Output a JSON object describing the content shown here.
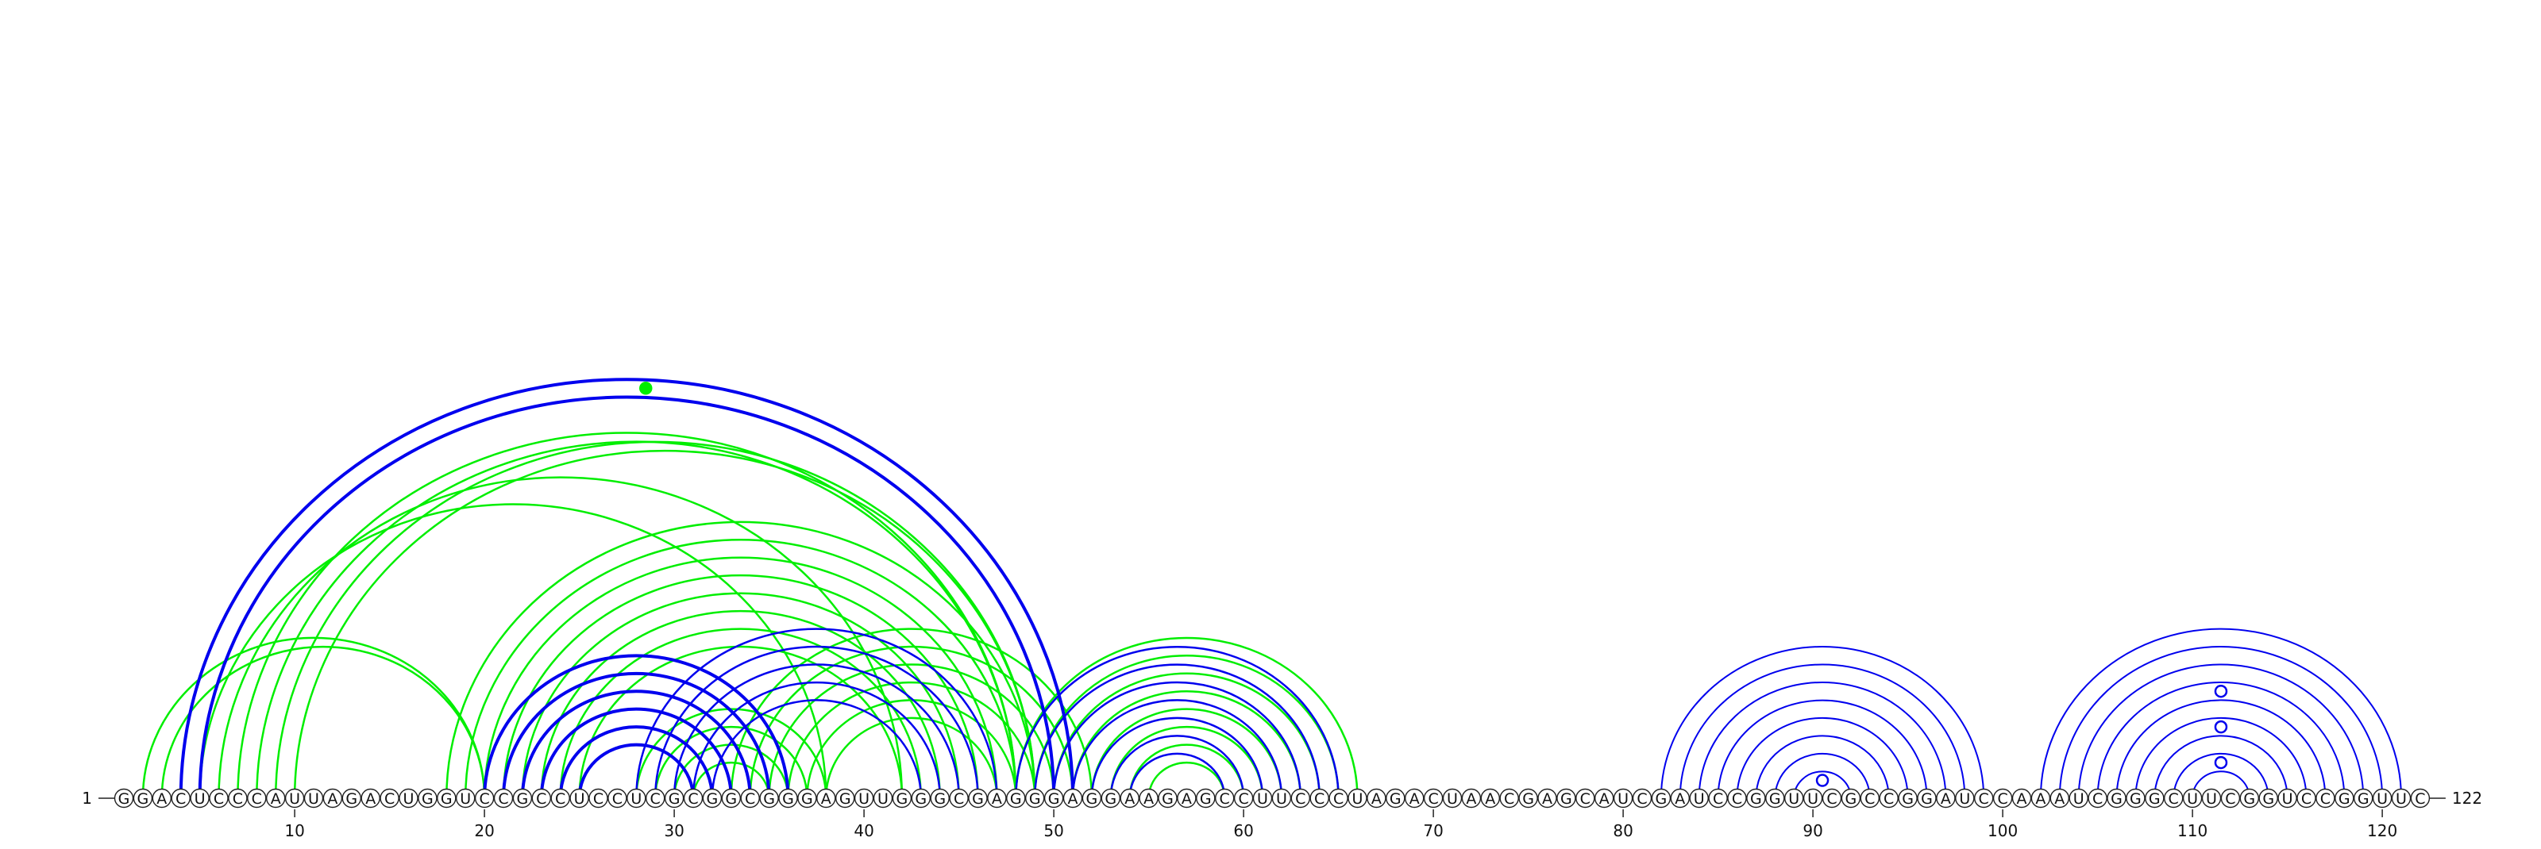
{
  "sequence": "GGACUCCCAUUAGACUGGUCCGCCUCCUCGCGGCGGGAGUUGGGCGAGGGAGGAAGAGCCUUCCCUAGACUAACGAGCAUCGAUCCGGUUCGCCGGAUCCAAAUCGGGCUUCGGUCCGGUUC",
  "length": 122,
  "start_label": "1",
  "end_label": "122",
  "ticks": [
    10,
    20,
    30,
    40,
    50,
    60,
    70,
    80,
    90,
    100,
    110,
    120
  ],
  "colors": {
    "blue": "#0000ee",
    "green": "#00ee00",
    "circle_stroke": "#222222",
    "circle_fill": "#ffffff"
  },
  "arc_groups": [
    {
      "color": "green",
      "stroke": 2.5,
      "pairs": [
        [
          2,
          20
        ],
        [
          3,
          20
        ],
        [
          5,
          38
        ],
        [
          6,
          42
        ],
        [
          7,
          48
        ],
        [
          8,
          48
        ],
        [
          9,
          49
        ],
        [
          10,
          49
        ],
        [
          18,
          49
        ],
        [
          19,
          48
        ],
        [
          20,
          47
        ],
        [
          21,
          46
        ],
        [
          22,
          45
        ],
        [
          23,
          44
        ],
        [
          24,
          43
        ],
        [
          25,
          42
        ],
        [
          28,
          38
        ],
        [
          29,
          37
        ],
        [
          30,
          36
        ],
        [
          31,
          35
        ],
        [
          33,
          52
        ],
        [
          34,
          51
        ],
        [
          35,
          50
        ],
        [
          36,
          49
        ],
        [
          37,
          48
        ],
        [
          38,
          47
        ],
        [
          48,
          66
        ],
        [
          49,
          65
        ],
        [
          50,
          64
        ],
        [
          51,
          63
        ],
        [
          52,
          62
        ],
        [
          53,
          61
        ],
        [
          54,
          60
        ],
        [
          55,
          59
        ]
      ]
    },
    {
      "color": "blue",
      "stroke": 4,
      "pairs": [
        [
          4,
          51
        ],
        [
          5,
          50
        ],
        [
          20,
          36
        ],
        [
          21,
          35
        ],
        [
          22,
          34
        ],
        [
          23,
          33
        ],
        [
          24,
          32
        ],
        [
          25,
          31
        ]
      ]
    },
    {
      "color": "blue",
      "stroke": 2.5,
      "pairs": [
        [
          28,
          47
        ],
        [
          29,
          46
        ],
        [
          30,
          45
        ],
        [
          31,
          44
        ],
        [
          32,
          43
        ],
        [
          48,
          65
        ],
        [
          49,
          64
        ],
        [
          50,
          63
        ],
        [
          51,
          62
        ],
        [
          52,
          61
        ],
        [
          53,
          60
        ],
        [
          54,
          59
        ]
      ]
    },
    {
      "color": "blue",
      "stroke": 2,
      "pairs": [
        [
          82,
          99
        ],
        [
          83,
          98
        ],
        [
          84,
          97
        ],
        [
          85,
          96
        ],
        [
          86,
          95
        ],
        [
          87,
          94
        ],
        [
          88,
          93
        ],
        [
          89,
          92
        ],
        [
          102,
          121
        ],
        [
          103,
          120
        ],
        [
          104,
          119
        ],
        [
          105,
          118
        ],
        [
          106,
          117
        ],
        [
          107,
          116
        ],
        [
          108,
          115
        ],
        [
          109,
          114
        ],
        [
          110,
          113
        ]
      ]
    }
  ],
  "loop_markers": [
    {
      "color": "green",
      "filled": true,
      "at": 28.5,
      "span": 46
    },
    {
      "color": "blue",
      "filled": false,
      "at": 90.5,
      "span": 2
    },
    {
      "color": "blue",
      "filled": false,
      "at": 111.5,
      "span": 4
    },
    {
      "color": "blue",
      "filled": false,
      "at": 111.5,
      "span": 8
    },
    {
      "color": "blue",
      "filled": false,
      "at": 111.5,
      "span": 12
    }
  ]
}
